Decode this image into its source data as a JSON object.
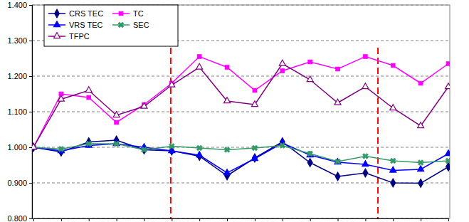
{
  "chart_data": {
    "type": "line",
    "categories": [
      null,
      null,
      null,
      null,
      null,
      null,
      null,
      null,
      null,
      null,
      null,
      null,
      null,
      null,
      null,
      null
    ],
    "series": [
      {
        "name": "CRS TEC",
        "color": "#000080",
        "marker": "diamond",
        "line_style": "solid",
        "values": [
          1.0,
          0.987,
          1.015,
          1.02,
          0.993,
          0.99,
          0.975,
          0.92,
          0.97,
          1.015,
          0.957,
          0.918,
          0.928,
          0.9,
          0.899,
          0.945
        ]
      },
      {
        "name": "TC",
        "color": "#ff00ff",
        "marker": "square",
        "line_style": "solid",
        "values": [
          1.0,
          1.15,
          1.14,
          1.07,
          1.12,
          1.18,
          1.255,
          1.225,
          1.16,
          1.215,
          1.24,
          1.22,
          1.255,
          1.23,
          1.18,
          1.235
        ]
      },
      {
        "name": "VRS TEC",
        "color": "#0000ff",
        "marker": "triangle",
        "line_style": "solid",
        "values": [
          1.0,
          0.99,
          1.005,
          1.01,
          1.0,
          0.99,
          0.978,
          0.928,
          0.968,
          1.012,
          0.978,
          0.958,
          0.952,
          0.935,
          0.938,
          0.982
        ]
      },
      {
        "name": "SEC",
        "color": "#339966",
        "marker": "x",
        "line_style": "solid",
        "values": [
          1.0,
          0.995,
          1.01,
          1.01,
          0.993,
          1.003,
          0.998,
          0.993,
          0.998,
          1.005,
          0.982,
          0.96,
          0.975,
          0.962,
          0.957,
          0.962
        ]
      },
      {
        "name": "TFPC",
        "color": "#800080",
        "marker": "triangle-open",
        "line_style": "solid",
        "values": [
          1.0,
          1.135,
          1.16,
          1.09,
          1.115,
          1.175,
          1.225,
          1.13,
          1.12,
          1.235,
          1.19,
          1.125,
          1.17,
          1.11,
          1.06,
          1.17
        ]
      }
    ],
    "ylim": [
      0.8,
      1.4
    ],
    "yticks": [
      {
        "value": 0.8,
        "label": "0.800"
      },
      {
        "value": 0.9,
        "label": "0.900"
      },
      {
        "value": 1.0,
        "label": "1.000"
      },
      {
        "value": 1.1,
        "label": "1.100"
      },
      {
        "value": 1.2,
        "label": "1.200"
      },
      {
        "value": 1.3,
        "label": "1.300"
      },
      {
        "value": 1.4,
        "label": "1.400"
      }
    ],
    "grid": true,
    "legend": "upper left",
    "tick_labels": "y"
  }
}
